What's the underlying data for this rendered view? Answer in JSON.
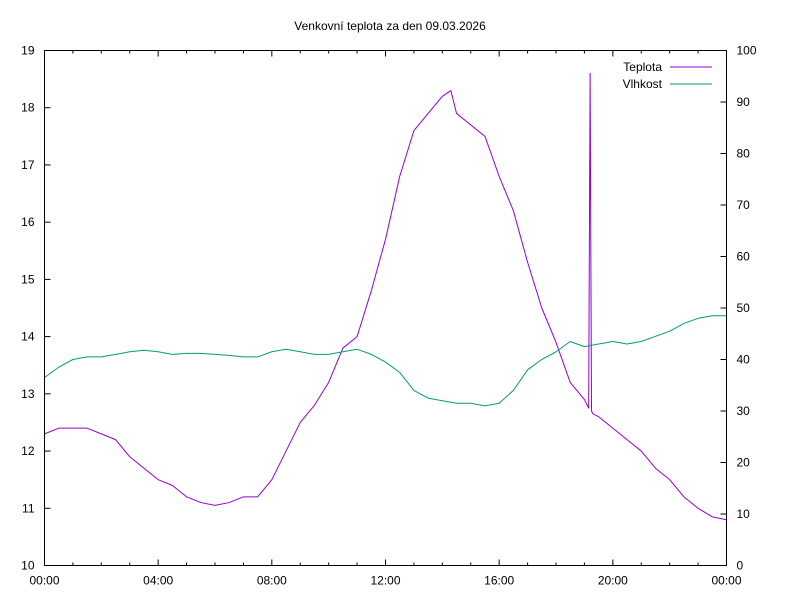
{
  "chart_data": {
    "type": "line",
    "title": "Venkovní teplota za den 09.03.2026",
    "xlabel": "",
    "ylabel": "",
    "y2label": "",
    "x_ticks": [
      "00:00",
      "04:00",
      "08:00",
      "12:00",
      "16:00",
      "20:00",
      "00:00"
    ],
    "xlim": [
      0,
      24
    ],
    "ylim": [
      10,
      19
    ],
    "y2lim": [
      0,
      100
    ],
    "y_ticks": [
      "10",
      "11",
      "12",
      "13",
      "14",
      "15",
      "16",
      "17",
      "18",
      "19"
    ],
    "y2_ticks": [
      "0",
      "10",
      "20",
      "30",
      "40",
      "50",
      "60",
      "70",
      "80",
      "90",
      "100"
    ],
    "grid": false,
    "legend_position": "top-right",
    "series": [
      {
        "name": "Teplota",
        "axis": "left",
        "color": "#9400d3",
        "x": [
          0.0,
          0.5,
          1.0,
          1.5,
          2.0,
          2.5,
          3.0,
          3.5,
          4.0,
          4.5,
          5.0,
          5.5,
          6.0,
          6.5,
          7.0,
          7.5,
          8.0,
          8.5,
          9.0,
          9.5,
          10.0,
          10.5,
          11.0,
          11.5,
          12.0,
          12.5,
          13.0,
          13.5,
          14.0,
          14.3,
          14.5,
          15.0,
          15.5,
          16.0,
          16.5,
          17.0,
          17.5,
          18.0,
          18.5,
          19.0,
          19.15,
          19.2,
          19.25,
          19.3,
          19.5,
          20.0,
          20.5,
          21.0,
          21.5,
          22.0,
          22.5,
          23.0,
          23.5,
          24.0
        ],
        "values": [
          12.3,
          12.4,
          12.4,
          12.4,
          12.3,
          12.2,
          11.9,
          11.7,
          11.5,
          11.4,
          11.2,
          11.1,
          11.05,
          11.1,
          11.2,
          11.2,
          11.5,
          12.0,
          12.5,
          12.8,
          13.2,
          13.8,
          14.0,
          14.8,
          15.7,
          16.8,
          17.6,
          17.9,
          18.2,
          18.3,
          17.9,
          17.7,
          17.5,
          16.8,
          16.2,
          15.3,
          14.5,
          13.9,
          13.2,
          12.9,
          12.75,
          18.6,
          12.7,
          12.65,
          12.6,
          12.4,
          12.2,
          12.0,
          11.7,
          11.5,
          11.2,
          11.0,
          10.85,
          10.8
        ]
      },
      {
        "name": "Vlhkost",
        "axis": "right",
        "color": "#009e73",
        "x": [
          0.0,
          0.5,
          1.0,
          1.5,
          2.0,
          2.5,
          3.0,
          3.5,
          4.0,
          4.5,
          5.0,
          5.5,
          6.0,
          6.5,
          7.0,
          7.5,
          8.0,
          8.5,
          9.0,
          9.5,
          10.0,
          10.5,
          11.0,
          11.5,
          12.0,
          12.5,
          13.0,
          13.5,
          14.0,
          14.5,
          15.0,
          15.5,
          16.0,
          16.5,
          17.0,
          17.5,
          18.0,
          18.5,
          19.0,
          19.5,
          20.0,
          20.5,
          21.0,
          21.5,
          22.0,
          22.5,
          23.0,
          23.5,
          24.0
        ],
        "values": [
          36.5,
          38.5,
          40.0,
          40.5,
          40.5,
          41.0,
          41.5,
          41.8,
          41.5,
          41.0,
          41.2,
          41.2,
          41.0,
          40.8,
          40.5,
          40.5,
          41.5,
          42.0,
          41.5,
          41.0,
          41.0,
          41.5,
          42.0,
          41.0,
          39.5,
          37.5,
          34.0,
          32.5,
          32.0,
          31.5,
          31.5,
          31.0,
          31.5,
          34.0,
          38.0,
          40.0,
          41.5,
          43.5,
          42.5,
          43.0,
          43.5,
          43.0,
          43.5,
          44.5,
          45.5,
          47.0,
          48.0,
          48.5,
          48.5
        ]
      }
    ]
  }
}
